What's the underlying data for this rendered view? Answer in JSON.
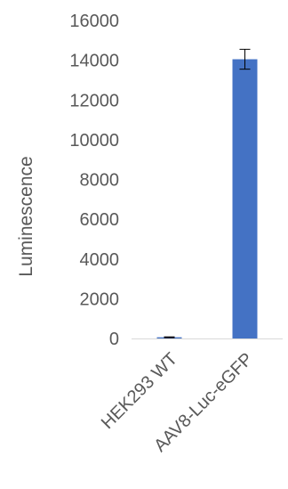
{
  "chart_data": {
    "type": "bar",
    "title": "",
    "xlabel": "",
    "ylabel": "Luminescence",
    "categories": [
      "HEK293 WT",
      "AAV8-Luc-eGFP"
    ],
    "series": [
      {
        "values": [
          60,
          14050
        ],
        "error": [
          20,
          500
        ]
      }
    ],
    "ylim": [
      0,
      16000
    ],
    "yticks": [
      0,
      2000,
      4000,
      6000,
      8000,
      10000,
      12000,
      14000,
      16000
    ],
    "grid": false,
    "legend": "none",
    "colors": {
      "bar": "#4472C4",
      "axis": "#D9D9D9",
      "text": "#595959",
      "errorbar": "#000000"
    }
  }
}
